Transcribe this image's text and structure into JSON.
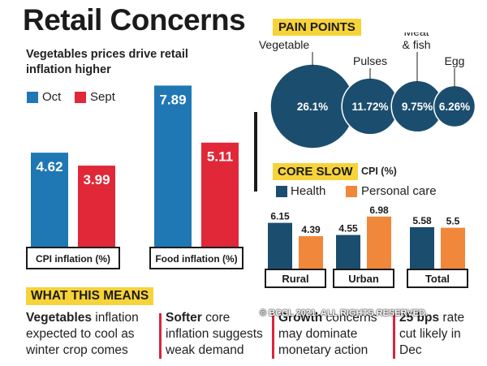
{
  "title": "Retail Concerns",
  "colors": {
    "oct": "#1f78b4",
    "sept": "#e02838",
    "bubble": "#1b4e6e",
    "health": "#1b4e6e",
    "personal": "#f0873a",
    "yellow": "#f7d33a"
  },
  "chart_data": [
    {
      "type": "bar",
      "title": "Vegetables prices drive retail inflation higher",
      "categories": [
        "CPI inflation (%)",
        "Food inflation (%)"
      ],
      "series": [
        {
          "name": "Oct",
          "values": [
            4.62,
            7.89
          ]
        },
        {
          "name": "Sept",
          "values": [
            3.99,
            5.11
          ]
        }
      ],
      "data_labels": [
        [
          "4.62",
          "3.99"
        ],
        [
          "7.89",
          "5.11"
        ]
      ],
      "ylim": [
        0,
        8.5
      ]
    },
    {
      "type": "bubble",
      "title": "PAIN POINTS",
      "categories": [
        "Vegetable",
        "Pulses",
        "Meat & fish",
        "Egg"
      ],
      "values": [
        26.1,
        11.72,
        9.75,
        6.26
      ],
      "data_labels": [
        "26.1%",
        "11.72%",
        "9.75%",
        "6.26%"
      ]
    },
    {
      "type": "bar",
      "title": "CORE SLOW",
      "ylabel": "CPI (%)",
      "categories": [
        "Rural",
        "Urban",
        "Total"
      ],
      "series": [
        {
          "name": "Health",
          "values": [
            6.15,
            4.55,
            5.58
          ]
        },
        {
          "name": "Personal care",
          "values": [
            4.39,
            6.98,
            5.5
          ]
        }
      ],
      "data_labels": [
        [
          "6.15",
          "4.39"
        ],
        [
          "4.55",
          "6.98"
        ],
        [
          "5.58",
          "5.5"
        ]
      ],
      "ylim": [
        0,
        7.5
      ]
    }
  ],
  "what_this_means": {
    "header": "WHAT THIS MEANS",
    "items": [
      {
        "bold": "Vegetables",
        "rest": " inflation expected to cool as winter crop comes"
      },
      {
        "bold": "Softer",
        "rest": " core inflation suggests weak demand"
      },
      {
        "bold": "Growth",
        "rest": " concerns may dominate monetary action"
      },
      {
        "bold": "25 bps",
        "rest": " rate cut likely in Dec"
      }
    ]
  },
  "watermark": "© BCCL 2021. ALL RIGHTS RESERVED."
}
